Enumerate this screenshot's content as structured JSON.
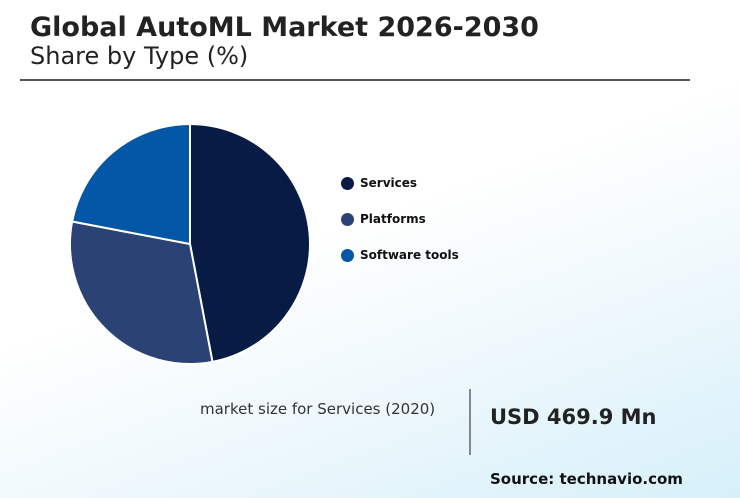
{
  "header": {
    "title": "Global AutoML Market 2026-2030",
    "subtitle": "Share by Type (%)"
  },
  "chart_data": {
    "type": "pie",
    "categories": [
      "Services",
      "Platforms",
      "Software tools"
    ],
    "values": [
      47,
      31,
      22
    ],
    "colors": [
      "#071b45",
      "#2a4374",
      "#0457a6"
    ],
    "start_angle_deg": 0,
    "direction": "clockwise",
    "slice_border_color": "#ffffff",
    "legend_position": "right"
  },
  "market": {
    "label": "market size for Services (2020)",
    "value": "USD 469.9 Mn"
  },
  "footer": {
    "source": "Source: technavio.com"
  }
}
